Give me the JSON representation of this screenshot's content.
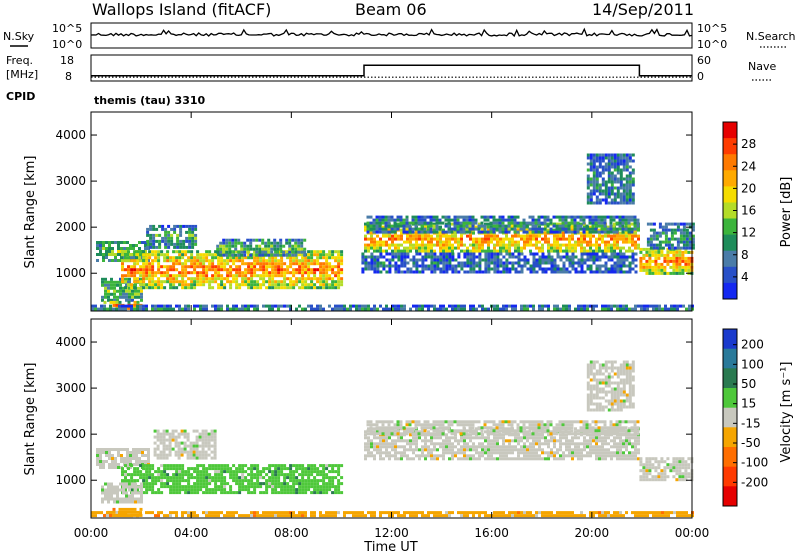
{
  "header": {
    "site": "Wallops Island (fitACF)",
    "beam": "Beam 06",
    "date": "14/Sep/2011"
  },
  "nsky_panel": {
    "left_label": "N.Sky",
    "right_label": "N.Search",
    "left_ticks": [
      "10^5",
      "10^0"
    ],
    "right_ticks": [
      "10^5",
      "10^0"
    ]
  },
  "freq_panel": {
    "left_label_top": "Freq.",
    "left_label_bottom": "[MHz]",
    "right_label": "Nave",
    "left_ticks": [
      "18",
      "8"
    ],
    "right_ticks": [
      "60",
      "0"
    ],
    "cpid_label": "CPID",
    "cpid_value": "themis (tau) 3310",
    "freq_series": [
      [
        0,
        10
      ],
      [
        10.9,
        10
      ],
      [
        10.9,
        15
      ],
      [
        21.9,
        15
      ],
      [
        21.9,
        10
      ],
      [
        24,
        10
      ]
    ],
    "nave_level": 8
  },
  "chart_data": [
    {
      "type": "heatmap",
      "panel": "power",
      "ylabel": "Slant Range [km]",
      "y_ticks": [
        1000,
        2000,
        3000,
        4000
      ],
      "ylim": [
        180,
        4500
      ],
      "x_ticks": [
        "00:00",
        "04:00",
        "08:00",
        "12:00",
        "16:00",
        "20:00",
        "00:00"
      ],
      "xlim_hours": [
        0,
        24
      ],
      "colorbar": {
        "label": "Power [dB]",
        "ticks": [
          "28",
          "24",
          "20",
          "16",
          "12",
          "8",
          "4"
        ],
        "colors": [
          "#e60000",
          "#ff3c00",
          "#ff7a00",
          "#ffaa00",
          "#f5dc00",
          "#b4dc28",
          "#3cb43c",
          "#1e8c5a",
          "#4a7ca8",
          "#2850c8",
          "#1428f0"
        ]
      },
      "regions": [
        {
          "t0": 0.2,
          "t1": 2.3,
          "r0": 1300,
          "r1": 1700,
          "c": 0.45
        },
        {
          "t0": 2.2,
          "t1": 4.2,
          "r0": 1550,
          "r1": 2050,
          "c": 0.35
        },
        {
          "t0": 0.4,
          "t1": 2.0,
          "r0": 400,
          "r1": 900,
          "c": 0.45
        },
        {
          "t0": 0.5,
          "t1": 2.0,
          "r0": 220,
          "r1": 400,
          "c": 0.9
        },
        {
          "t0": 1.2,
          "t1": 10.0,
          "r0": 700,
          "r1": 1500,
          "c": 0.8
        },
        {
          "t0": 5.0,
          "t1": 8.5,
          "r0": 1400,
          "r1": 1750,
          "c": 0.4
        },
        {
          "t0": 10.9,
          "t1": 21.9,
          "r0": 1450,
          "r1": 2100,
          "c": 0.75
        },
        {
          "t0": 11.0,
          "t1": 21.9,
          "r0": 1900,
          "r1": 2250,
          "c": 0.3
        },
        {
          "t0": 10.8,
          "t1": 21.8,
          "r0": 1050,
          "r1": 1450,
          "c": 0.2
        },
        {
          "t0": 19.8,
          "t1": 21.6,
          "r0": 2500,
          "r1": 3600,
          "c": 0.25
        },
        {
          "t0": 21.9,
          "t1": 24.0,
          "r0": 1000,
          "r1": 1550,
          "c": 0.8
        },
        {
          "t0": 22.2,
          "t1": 24.0,
          "r0": 1550,
          "r1": 2100,
          "c": 0.3
        },
        {
          "t0": 0.0,
          "t1": 24.0,
          "r0": 200,
          "r1": 320,
          "c": 0.25
        }
      ]
    },
    {
      "type": "heatmap",
      "panel": "velocity",
      "ylabel": "Slant Range [km]",
      "y_ticks": [
        1000,
        2000,
        3000,
        4000
      ],
      "ylim": [
        180,
        4500
      ],
      "x_ticks": [
        "00:00",
        "04:00",
        "08:00",
        "12:00",
        "16:00",
        "20:00",
        "00:00"
      ],
      "xlabel": "Time UT",
      "xlim_hours": [
        0,
        24
      ],
      "colorbar": {
        "label": "Velocity [m s⁻¹]",
        "ticks": [
          "200",
          "100",
          "50",
          "15",
          "-15",
          "-50",
          "-100",
          "-200"
        ],
        "colors": [
          "#1a3acd",
          "#2a7a9a",
          "#2a7a50",
          "#4ec83a",
          "#c8c8be",
          "#f5a500",
          "#ff6e00",
          "#ff3a00",
          "#e60000"
        ]
      },
      "regions": [
        {
          "t0": 0.2,
          "t1": 2.3,
          "r0": 1300,
          "r1": 1700,
          "c": 4
        },
        {
          "t0": 2.5,
          "t1": 5.0,
          "r0": 1500,
          "r1": 2100,
          "c": 4
        },
        {
          "t0": 1.2,
          "t1": 10.0,
          "r0": 750,
          "r1": 1350,
          "c": 3
        },
        {
          "t0": 0.4,
          "t1": 2.0,
          "r0": 500,
          "r1": 950,
          "c": 4
        },
        {
          "t0": 0.5,
          "t1": 2.0,
          "r0": 220,
          "r1": 400,
          "c": 5
        },
        {
          "t0": 10.9,
          "t1": 21.9,
          "r0": 1450,
          "r1": 2150,
          "c": 4
        },
        {
          "t0": 11.0,
          "t1": 21.9,
          "r0": 2000,
          "r1": 2300,
          "c": 4
        },
        {
          "t0": 19.8,
          "t1": 21.6,
          "r0": 2500,
          "r1": 3600,
          "c": 4
        },
        {
          "t0": 21.9,
          "t1": 24.0,
          "r0": 1000,
          "r1": 1500,
          "c": 4
        },
        {
          "t0": 0.0,
          "t1": 24.0,
          "r0": 200,
          "r1": 330,
          "c": 5
        }
      ]
    }
  ]
}
